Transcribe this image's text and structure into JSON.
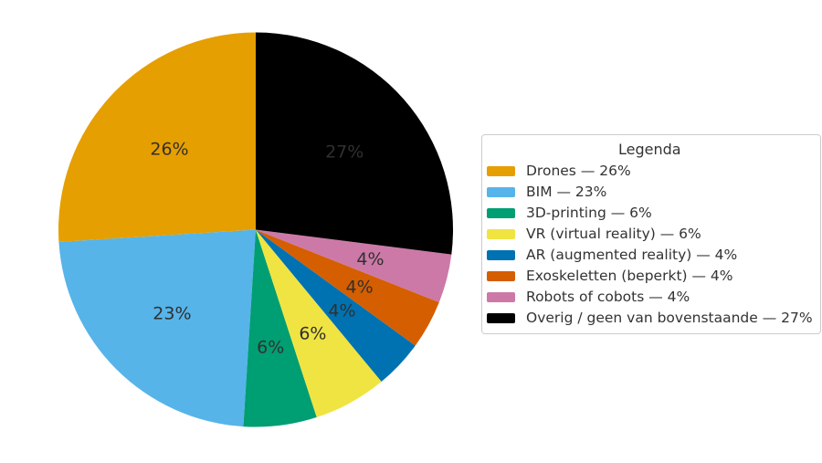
{
  "figure": {
    "background": "#ffffff"
  },
  "legend": {
    "title": "Legenda",
    "border_color": "#cccccc",
    "background": "#ffffff",
    "text_color": "#333333",
    "position": "right"
  },
  "chart_data": {
    "type": "pie",
    "title": "",
    "categories": [
      "Drones",
      "BIM",
      "3D-printing",
      "VR (virtual reality)",
      "AR (augmented reality)",
      "Exoskeletten (beperkt)",
      "Robots of cobots",
      "Overig / geen van bovenstaande"
    ],
    "values": [
      26,
      23,
      6,
      6,
      4,
      4,
      4,
      27
    ],
    "percent_labels": [
      "26%",
      "23%",
      "6%",
      "6%",
      "4%",
      "4%",
      "4%",
      "27%"
    ],
    "legend_entries": [
      "Drones — 26%",
      "BIM — 23%",
      "3D-printing — 6%",
      "VR (virtual reality) — 6%",
      "AR (augmented reality) — 4%",
      "Exoskeletten (beperkt) — 4%",
      "Robots of cobots — 4%",
      "Overig / geen van bovenstaande — 27%"
    ],
    "colors": [
      "#E69F00",
      "#56B4E9",
      "#009E73",
      "#F0E442",
      "#0072B2",
      "#D55E00",
      "#CC79A7",
      "#000000"
    ],
    "start_angle_deg": 90,
    "direction": "counterclockwise",
    "label_color": "#303030",
    "legend_title": "Legenda",
    "legend_position": "right",
    "grid": false
  }
}
